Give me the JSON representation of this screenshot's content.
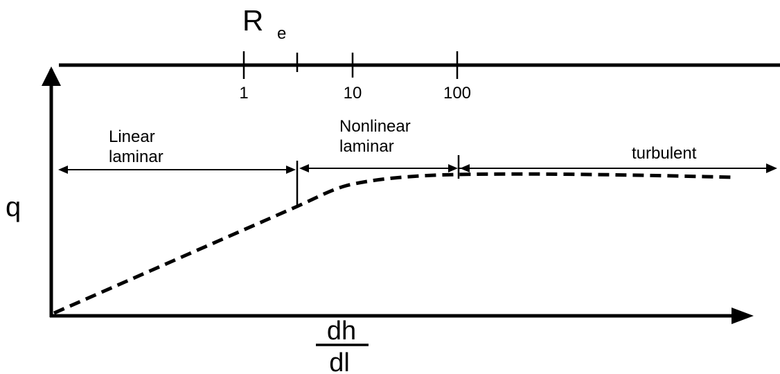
{
  "reynolds_axis": {
    "symbol": "R",
    "subscript": "e",
    "ticks": [
      "1",
      "10",
      "100"
    ]
  },
  "y_axis_label": "q",
  "x_axis_label": {
    "numerator": "dh",
    "denominator": "dl"
  },
  "regimes": [
    {
      "id": "linear",
      "lines": [
        "Linear",
        "laminar"
      ]
    },
    {
      "id": "nonlinear",
      "lines": [
        "Nonlinear",
        "laminar"
      ]
    },
    {
      "id": "turbulent",
      "lines": [
        "turbulent"
      ]
    }
  ],
  "colors": {
    "ink": "#000000",
    "background": "#ffffff"
  }
}
